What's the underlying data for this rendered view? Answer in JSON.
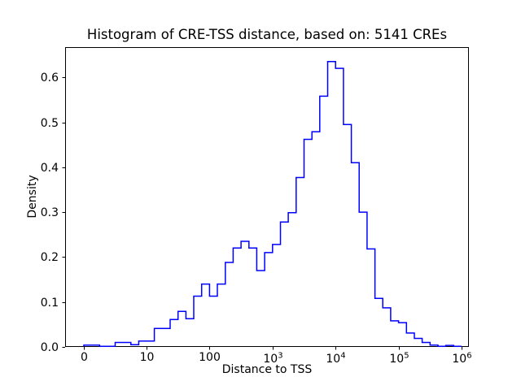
{
  "chart_data": {
    "type": "histogram",
    "style": "step-outline",
    "title": "Histogram of CRE-TSS distance, based on: 5141 CREs",
    "xlabel": "Distance to TSS",
    "ylabel": "Density",
    "total_count": 5141,
    "line_color": "#0000ff",
    "axis_color": "#000000",
    "x_scale": "symlog",
    "x_scale_note": "linear from 0 to 10, logarithmic from 10 to 1e6; 8 bins per segment-decade",
    "xlim": [
      -3,
      1300000
    ],
    "ylim": [
      0,
      0.667
    ],
    "grid": false,
    "legend": null,
    "x_ticks": [
      {
        "label": "0",
        "value": 0
      },
      {
        "label": "10",
        "value": 10
      },
      {
        "label": "100",
        "value": 100
      },
      {
        "label": "10^3",
        "value": 1000
      },
      {
        "label": "10^4",
        "value": 10000
      },
      {
        "label": "10^5",
        "value": 100000
      },
      {
        "label": "10^6",
        "value": 1000000
      }
    ],
    "y_ticks": [
      {
        "label": "0.0",
        "value": 0.0
      },
      {
        "label": "0.1",
        "value": 0.1
      },
      {
        "label": "0.2",
        "value": 0.2
      },
      {
        "label": "0.3",
        "value": 0.3
      },
      {
        "label": "0.4",
        "value": 0.4
      },
      {
        "label": "0.5",
        "value": 0.5
      },
      {
        "label": "0.6",
        "value": 0.6
      }
    ],
    "bin_edges": [
      0,
      1.25,
      2.5,
      3.75,
      5,
      6.25,
      7.5,
      8.75,
      10,
      13.3,
      17.8,
      23.7,
      31.6,
      42.2,
      56.2,
      75,
      100,
      133,
      178,
      237,
      316,
      422,
      562,
      750,
      1000,
      1334,
      1778,
      2371,
      3162,
      4217,
      5623,
      7499,
      10000,
      13335,
      17783,
      23714,
      31623,
      42170,
      56234,
      74989,
      100000,
      133352,
      177828,
      237137,
      316228,
      421697,
      562341,
      749894,
      1000000
    ],
    "densities": [
      0.004,
      0.004,
      0,
      0,
      0.01,
      0.01,
      0.005,
      0.013,
      0.013,
      0.041,
      0.041,
      0.061,
      0.079,
      0.063,
      0.113,
      0.14,
      0.113,
      0.14,
      0.188,
      0.22,
      0.235,
      0.22,
      0.17,
      0.21,
      0.228,
      0.278,
      0.299,
      0.377,
      0.462,
      0.479,
      0.558,
      0.635,
      0.62,
      0.495,
      0.41,
      0.3,
      0.218,
      0.108,
      0.087,
      0.058,
      0.054,
      0.031,
      0.019,
      0.01,
      0.004,
      0,
      0.0035,
      0
    ]
  }
}
